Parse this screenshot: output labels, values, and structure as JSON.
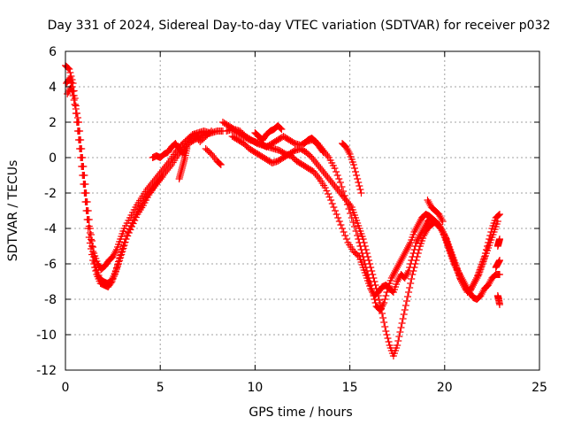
{
  "chart_data": {
    "type": "scatter",
    "title": "Day 331 of 2024, Sidereal Day-to-day VTEC variation (SDTVAR) for receiver p032",
    "xlabel": "GPS time / hours",
    "ylabel": "SDTVAR / TECUs",
    "xlim": [
      0,
      25
    ],
    "ylim": [
      -12,
      6
    ],
    "xticks": [
      0,
      5,
      10,
      15,
      20,
      25
    ],
    "yticks": [
      -12,
      -10,
      -8,
      -6,
      -4,
      -2,
      0,
      2,
      4,
      6
    ],
    "grid": true,
    "marker": "+",
    "series": [
      {
        "name": "SDTVAR",
        "color": "#ff0000",
        "tracks": [
          {
            "x": [
              0.0,
              0.2,
              0.4,
              0.6,
              0.8,
              1.0,
              1.2,
              1.4,
              1.6,
              1.8,
              2.0,
              2.2,
              2.4,
              2.6,
              2.8,
              3.0,
              3.2,
              3.5,
              3.8,
              4.1,
              4.4,
              4.7,
              5.0,
              5.3,
              5.6,
              5.9,
              6.2,
              6.5,
              6.8,
              7.1,
              7.4,
              7.7,
              8.0,
              8.3
            ],
            "y": [
              5.2,
              5.0,
              4.2,
              2.5,
              0.5,
              -1.5,
              -3.5,
              -5.0,
              -6.2,
              -6.8,
              -7.0,
              -7.1,
              -7.0,
              -6.6,
              -6.0,
              -5.3,
              -4.6,
              -3.9,
              -3.2,
              -2.7,
              -2.1,
              -1.6,
              -1.2,
              -0.8,
              -0.4,
              0.1,
              0.5,
              0.8,
              1.0,
              1.2,
              1.3,
              1.4,
              1.5,
              1.5
            ]
          },
          {
            "x": [
              0.05,
              0.25,
              0.45,
              0.65,
              0.85,
              1.05,
              1.25,
              1.45,
              1.65,
              1.85,
              2.05,
              2.25,
              2.45,
              2.65,
              2.85,
              3.05,
              3.3,
              3.6,
              3.9,
              4.2,
              4.5,
              4.8,
              5.1
            ],
            "y": [
              4.2,
              4.5,
              3.5,
              1.5,
              -0.5,
              -2.5,
              -4.5,
              -5.8,
              -6.6,
              -7.1,
              -7.2,
              -7.3,
              -7.0,
              -6.4,
              -5.7,
              -5.0,
              -4.2,
              -3.5,
              -2.9,
              -2.3,
              -1.9,
              -1.5,
              -1.1
            ]
          },
          {
            "x": [
              0.1,
              0.3,
              0.5,
              0.7,
              0.9,
              1.1,
              1.3,
              1.5,
              1.7,
              1.9,
              2.1,
              2.3,
              2.5,
              2.7,
              2.9,
              3.1,
              3.4,
              3.7,
              4.0,
              4.3,
              4.6,
              4.9,
              5.2,
              5.5,
              5.8,
              6.1,
              6.4,
              6.7,
              7.0,
              7.3,
              7.6
            ],
            "y": [
              3.6,
              4.0,
              3.0,
              2.0,
              0.0,
              -2.0,
              -4.0,
              -5.4,
              -6.0,
              -6.3,
              -6.1,
              -5.8,
              -5.6,
              -5.2,
              -4.6,
              -4.0,
              -3.4,
              -2.8,
              -2.3,
              -1.8,
              -1.4,
              -1.0,
              -0.6,
              -0.2,
              0.3,
              0.7,
              1.0,
              1.3,
              1.4,
              1.5,
              1.4
            ]
          },
          {
            "x": [
              4.6,
              4.8,
              5.0,
              5.2,
              5.4,
              5.6,
              5.8,
              6.0,
              6.2,
              6.4
            ],
            "y": [
              0.0,
              0.1,
              0.0,
              0.2,
              0.3,
              0.6,
              0.8,
              0.5,
              0.2,
              0.6
            ]
          },
          {
            "x": [
              6.0,
              6.1,
              6.2,
              6.3,
              6.4
            ],
            "y": [
              -1.2,
              -0.8,
              -0.4,
              0.0,
              0.5
            ]
          },
          {
            "x": [
              6.5,
              6.8,
              7.1,
              7.4,
              7.7
            ],
            "y": [
              1.0,
              1.3,
              0.9,
              1.2,
              1.5
            ]
          },
          {
            "x": [
              7.4,
              7.7,
              8.0,
              8.2
            ],
            "y": [
              0.5,
              0.2,
              -0.2,
              -0.4
            ]
          },
          {
            "x": [
              8.3,
              8.6,
              8.9,
              9.2,
              9.5,
              9.8,
              10.1,
              10.4,
              10.7,
              11.0,
              11.3,
              11.6,
              11.9,
              12.2,
              12.5,
              12.8,
              13.1,
              13.4,
              13.7,
              14.0,
              14.3,
              14.6,
              14.9,
              15.2,
              15.5,
              15.7,
              15.9,
              16.1,
              16.3,
              16.5,
              16.7,
              16.9,
              17.1,
              17.3,
              17.5,
              17.7,
              17.9,
              18.1,
              18.3,
              18.5,
              18.7,
              18.9,
              19.1,
              19.3,
              19.5,
              19.7,
              19.9,
              20.1,
              20.3,
              20.5,
              20.7,
              20.9,
              21.1,
              21.3,
              21.5,
              21.7,
              21.9,
              22.1,
              22.3,
              22.5,
              22.7,
              22.9
            ],
            "y": [
              2.0,
              1.8,
              1.6,
              1.5,
              1.2,
              1.0,
              0.8,
              0.7,
              0.6,
              0.5,
              0.4,
              0.2,
              0.1,
              -0.2,
              -0.4,
              -0.6,
              -0.8,
              -1.2,
              -1.7,
              -2.4,
              -3.2,
              -4.0,
              -4.8,
              -5.3,
              -5.6,
              -6.2,
              -6.8,
              -7.4,
              -7.8,
              -7.6,
              -7.3,
              -7.2,
              -7.4,
              -7.6,
              -7.0,
              -6.6,
              -6.8,
              -6.4,
              -5.6,
              -4.8,
              -4.4,
              -4.0,
              -3.6,
              -3.4,
              -3.6,
              -3.8,
              -4.2,
              -4.8,
              -5.4,
              -6.0,
              -6.4,
              -6.8,
              -7.2,
              -7.6,
              -7.9,
              -8.0,
              -7.8,
              -7.4,
              -7.2,
              -6.8,
              -6.6,
              -6.6
            ]
          },
          {
            "x": [
              8.5,
              8.8,
              9.1,
              9.4,
              9.7,
              10.0,
              10.3,
              10.6,
              10.9,
              11.2,
              11.5,
              11.8,
              12.1,
              12.4,
              12.7,
              13.0,
              13.3,
              13.6,
              13.9,
              14.2,
              14.5,
              14.8,
              15.1,
              15.4,
              15.6,
              15.8,
              16.0,
              16.2,
              16.4,
              16.6,
              16.8,
              17.0,
              17.2,
              17.4,
              17.6,
              17.8,
              18.0,
              18.2,
              18.4,
              18.6,
              18.8,
              19.0,
              19.2,
              19.4,
              19.6,
              19.8,
              20.0,
              20.2,
              20.4,
              20.6,
              20.8,
              21.0,
              21.2,
              21.4,
              21.6,
              21.8,
              22.0,
              22.2,
              22.4,
              22.6,
              22.8
            ],
            "y": [
              1.5,
              1.6,
              1.4,
              1.2,
              1.0,
              0.9,
              0.8,
              0.6,
              0.8,
              1.0,
              1.2,
              1.0,
              0.8,
              0.7,
              0.9,
              1.0,
              0.8,
              0.4,
              0.0,
              -0.6,
              -1.4,
              -2.4,
              -3.4,
              -4.4,
              -5.2,
              -6.0,
              -6.8,
              -7.6,
              -8.4,
              -8.6,
              -8.2,
              -7.4,
              -6.8,
              -6.4,
              -6.0,
              -5.6,
              -5.2,
              -4.8,
              -4.2,
              -3.8,
              -3.4,
              -3.2,
              -3.3,
              -3.5,
              -3.8,
              -4.0,
              -4.4,
              -5.0,
              -5.6,
              -6.2,
              -6.8,
              -7.2,
              -7.6,
              -7.4,
              -7.0,
              -6.6,
              -6.0,
              -5.4,
              -4.8,
              -4.2,
              -3.6
            ]
          },
          {
            "x": [
              8.8,
              9.1,
              9.4,
              9.7,
              10.0,
              10.3,
              10.6,
              10.9,
              11.2,
              11.5,
              11.8,
              12.1,
              12.4,
              12.7,
              13.0,
              13.3,
              13.6,
              13.9,
              14.2,
              14.5,
              14.8,
              15.1,
              15.3,
              15.5,
              15.7,
              15.9,
              16.1,
              16.3,
              16.5,
              16.7,
              16.9,
              17.1,
              17.3,
              17.5,
              17.7,
              17.9,
              18.1,
              18.3,
              18.5,
              18.7,
              18.9,
              19.1,
              19.3,
              19.5,
              19.7,
              19.9,
              20.1,
              20.3,
              20.5,
              20.7,
              20.9,
              21.1,
              21.3,
              21.5,
              21.7,
              21.9,
              22.1,
              22.3,
              22.5,
              22.7,
              22.9
            ],
            "y": [
              1.2,
              1.0,
              0.8,
              0.5,
              0.3,
              0.1,
              -0.1,
              -0.3,
              -0.2,
              0.0,
              0.2,
              0.4,
              0.5,
              0.3,
              0.0,
              -0.4,
              -0.8,
              -1.2,
              -1.6,
              -2.0,
              -2.4,
              -2.8,
              -3.4,
              -4.0,
              -4.6,
              -5.4,
              -6.2,
              -7.0,
              -7.8,
              -8.8,
              -9.8,
              -10.6,
              -11.2,
              -10.6,
              -9.6,
              -8.6,
              -7.6,
              -6.6,
              -5.8,
              -5.0,
              -4.4,
              -4.0,
              -3.8,
              -3.6,
              -3.8,
              -4.2,
              -4.6,
              -5.2,
              -5.8,
              -6.4,
              -7.0,
              -7.4,
              -7.6,
              -7.2,
              -6.8,
              -6.2,
              -5.6,
              -4.8,
              -4.0,
              -3.4,
              -3.2
            ]
          },
          {
            "x": [
              10.0,
              10.2,
              10.4,
              10.6,
              10.8,
              11.0,
              11.2,
              11.4
            ],
            "y": [
              1.4,
              1.2,
              1.0,
              1.3,
              1.5,
              1.6,
              1.8,
              1.6
            ]
          },
          {
            "x": [
              12.6,
              12.8,
              13.0,
              13.2,
              13.4,
              13.6
            ],
            "y": [
              0.8,
              1.0,
              1.1,
              0.9,
              0.6,
              0.3
            ]
          },
          {
            "x": [
              14.6,
              14.8,
              15.0,
              15.2,
              15.4,
              15.6
            ],
            "y": [
              0.8,
              0.6,
              0.2,
              -0.4,
              -1.2,
              -2.0
            ]
          },
          {
            "x": [
              19.1,
              19.3,
              19.5,
              19.7,
              19.9
            ],
            "y": [
              -2.4,
              -2.8,
              -3.0,
              -3.2,
              -3.6
            ]
          },
          {
            "x": [
              22.8,
              22.85,
              22.9
            ],
            "y": [
              -7.8,
              -8.0,
              -8.3
            ]
          },
          {
            "x": [
              22.7,
              22.8,
              22.9
            ],
            "y": [
              -6.2,
              -6.0,
              -5.8
            ]
          },
          {
            "x": [
              22.8,
              22.85,
              22.9
            ],
            "y": [
              -5.0,
              -4.8,
              -4.6
            ]
          }
        ]
      }
    ]
  }
}
